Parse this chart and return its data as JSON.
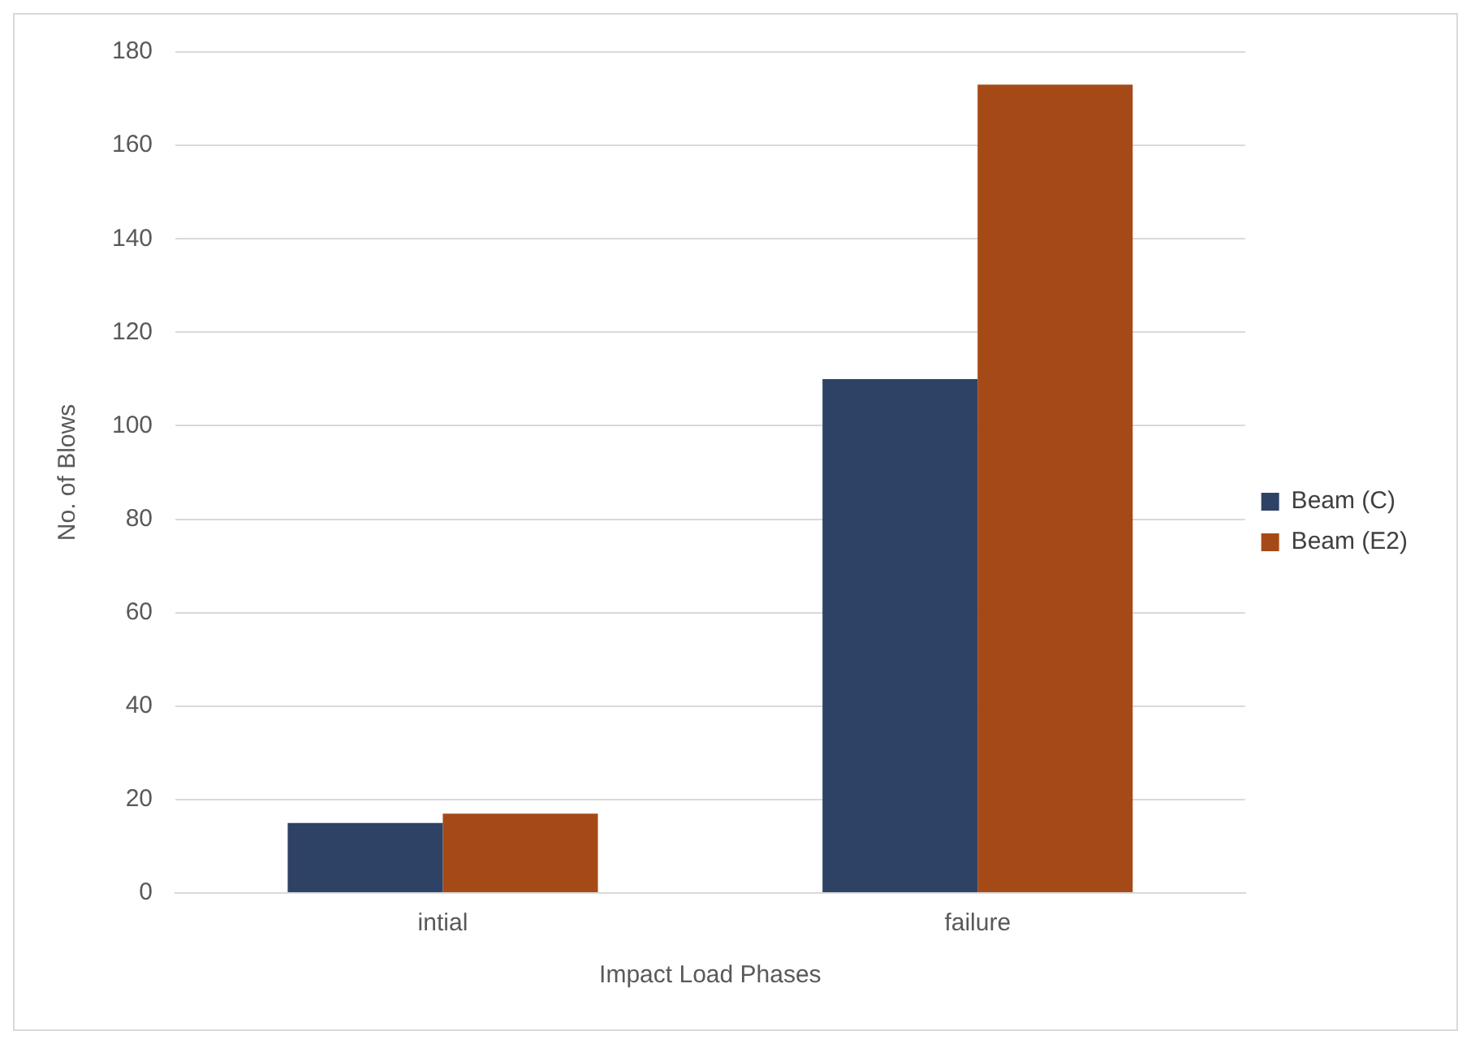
{
  "chart_data": {
    "type": "bar",
    "xlabel": "Impact Load Phases",
    "ylabel": "No. of Blows",
    "categories": [
      "intial",
      "failure"
    ],
    "series": [
      {
        "name": "Beam (C)",
        "color": "#2e4266",
        "values": [
          15,
          110
        ]
      },
      {
        "name": "Beam (E2)",
        "color": "#a54a17",
        "values": [
          17,
          173
        ]
      }
    ],
    "ylim": [
      0,
      180
    ],
    "yticks": [
      0,
      20,
      40,
      60,
      80,
      100,
      120,
      140,
      160,
      180
    ],
    "grid": "y",
    "legend": "right"
  }
}
